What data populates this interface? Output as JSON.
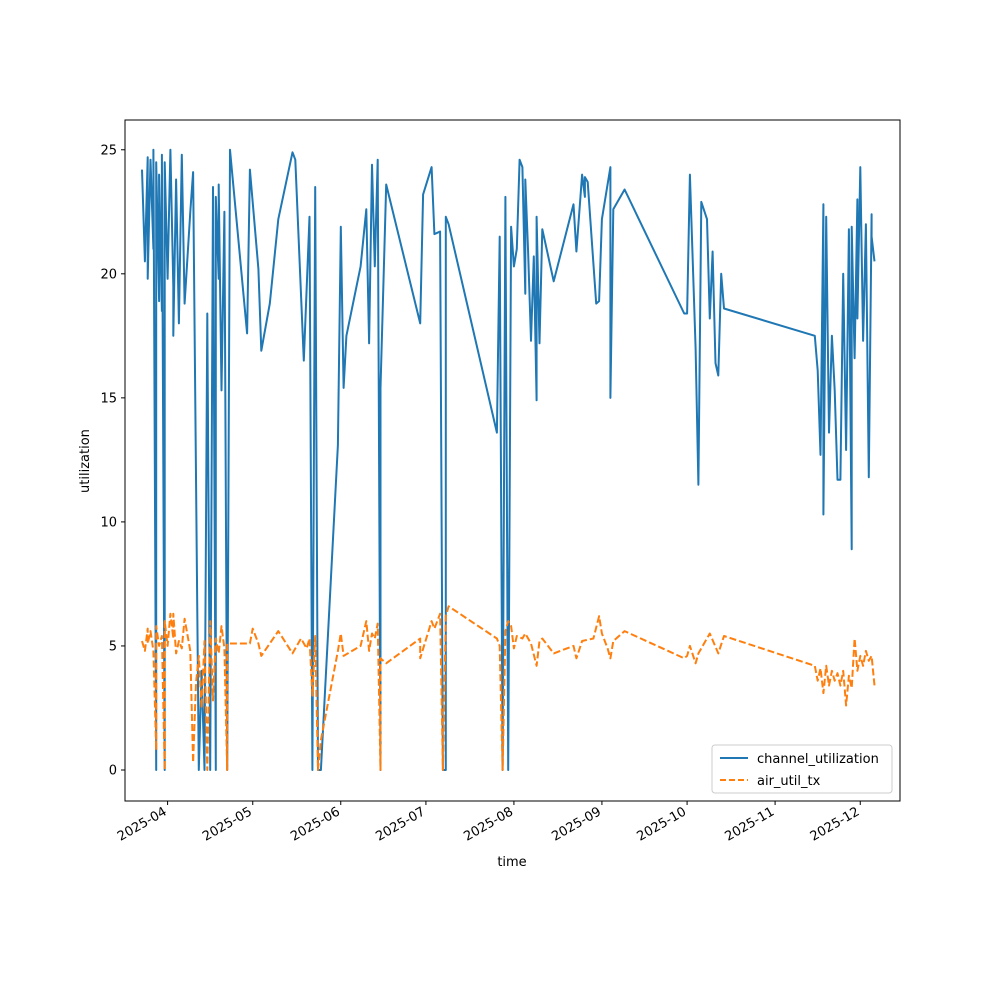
{
  "chart_data": {
    "type": "line",
    "title": "",
    "xlabel": "time",
    "ylabel": "utilization",
    "x_type": "date",
    "xlim": [
      "2025-03-17",
      "2025-12-15"
    ],
    "ylim": [
      -1.25,
      26.2
    ],
    "yticks": [
      0,
      5,
      10,
      15,
      20,
      25
    ],
    "xticks": [
      "2025-04-01",
      "2025-05-01",
      "2025-06-01",
      "2025-07-01",
      "2025-08-01",
      "2025-09-01",
      "2025-10-01",
      "2025-11-01",
      "2025-12-01"
    ],
    "xtick_labels": [
      "2025-04",
      "2025-05",
      "2025-06",
      "2025-07",
      "2025-08",
      "2025-09",
      "2025-10",
      "2025-11",
      "2025-12"
    ],
    "grid": false,
    "legend_position": "lower-right",
    "series": [
      {
        "name": "channel_utilization",
        "color": "#1f77b4",
        "style": "solid",
        "points": [
          [
            "2025-03-23",
            24.2
          ],
          [
            "2025-03-24",
            20.5
          ],
          [
            "2025-03-25",
            24.7
          ],
          [
            "2025-03-25",
            19.8
          ],
          [
            "2025-03-26",
            24.6
          ],
          [
            "2025-03-27",
            21.0
          ],
          [
            "2025-03-27",
            25.0
          ],
          [
            "2025-03-28",
            0.0
          ],
          [
            "2025-03-28",
            24.5
          ],
          [
            "2025-03-29",
            18.9
          ],
          [
            "2025-03-29",
            24.0
          ],
          [
            "2025-03-30",
            18.5
          ],
          [
            "2025-03-30",
            24.8
          ],
          [
            "2025-03-31",
            0.0
          ],
          [
            "2025-03-31",
            24.5
          ],
          [
            "2025-04-01",
            19.8
          ],
          [
            "2025-04-02",
            25.0
          ],
          [
            "2025-04-03",
            19.5
          ],
          [
            "2025-04-03",
            17.5
          ],
          [
            "2025-04-04",
            23.8
          ],
          [
            "2025-04-05",
            18.0
          ],
          [
            "2025-04-06",
            24.8
          ],
          [
            "2025-04-07",
            18.8
          ],
          [
            "2025-04-09",
            22.5
          ],
          [
            "2025-04-10",
            24.1
          ],
          [
            "2025-04-12",
            0.0
          ],
          [
            "2025-04-13",
            4.0
          ],
          [
            "2025-04-14",
            0.0
          ],
          [
            "2025-04-15",
            18.4
          ],
          [
            "2025-04-16",
            0.0
          ],
          [
            "2025-04-17",
            23.5
          ],
          [
            "2025-04-18",
            0.0
          ],
          [
            "2025-04-18",
            23.1
          ],
          [
            "2025-04-19",
            19.8
          ],
          [
            "2025-04-19",
            23.6
          ],
          [
            "2025-04-20",
            15.3
          ],
          [
            "2025-04-21",
            22.5
          ],
          [
            "2025-04-22",
            0.0
          ],
          [
            "2025-04-23",
            25.0
          ],
          [
            "2025-04-29",
            17.6
          ],
          [
            "2025-04-30",
            24.2
          ],
          [
            "2025-05-03",
            20.2
          ],
          [
            "2025-05-04",
            16.9
          ],
          [
            "2025-05-07",
            18.8
          ],
          [
            "2025-05-10",
            22.2
          ],
          [
            "2025-05-15",
            24.9
          ],
          [
            "2025-05-16",
            24.6
          ],
          [
            "2025-05-19",
            16.5
          ],
          [
            "2025-05-21",
            22.3
          ],
          [
            "2025-05-22",
            0.0
          ],
          [
            "2025-05-23",
            23.5
          ],
          [
            "2025-05-24",
            0.0
          ],
          [
            "2025-05-25",
            0.0
          ],
          [
            "2025-05-31",
            13.1
          ],
          [
            "2025-06-01",
            21.8
          ],
          [
            "2025-06-01",
            21.9
          ],
          [
            "2025-06-02",
            15.4
          ],
          [
            "2025-06-03",
            17.5
          ],
          [
            "2025-06-08",
            20.3
          ],
          [
            "2025-06-10",
            22.6
          ],
          [
            "2025-06-11",
            17.2
          ],
          [
            "2025-06-12",
            24.4
          ],
          [
            "2025-06-13",
            20.3
          ],
          [
            "2025-06-14",
            24.6
          ],
          [
            "2025-06-15",
            0.0
          ],
          [
            "2025-06-15",
            15.4
          ],
          [
            "2025-06-17",
            23.6
          ],
          [
            "2025-06-29",
            18.0
          ],
          [
            "2025-06-30",
            23.2
          ],
          [
            "2025-07-03",
            24.3
          ],
          [
            "2025-07-04",
            21.6
          ],
          [
            "2025-07-06",
            21.7
          ],
          [
            "2025-07-07",
            0.0
          ],
          [
            "2025-07-08",
            0.0
          ],
          [
            "2025-07-08",
            22.3
          ],
          [
            "2025-07-09",
            22.0
          ],
          [
            "2025-07-26",
            13.6
          ],
          [
            "2025-07-27",
            21.5
          ],
          [
            "2025-07-28",
            0.0
          ],
          [
            "2025-07-29",
            23.1
          ],
          [
            "2025-07-30",
            0.0
          ],
          [
            "2025-07-31",
            21.9
          ],
          [
            "2025-08-01",
            20.3
          ],
          [
            "2025-08-02",
            21.0
          ],
          [
            "2025-08-03",
            24.6
          ],
          [
            "2025-08-04",
            24.3
          ],
          [
            "2025-08-05",
            19.2
          ],
          [
            "2025-08-05",
            23.8
          ],
          [
            "2025-08-06",
            20.9
          ],
          [
            "2025-08-07",
            17.3
          ],
          [
            "2025-08-08",
            20.7
          ],
          [
            "2025-08-09",
            14.9
          ],
          [
            "2025-08-09",
            22.3
          ],
          [
            "2025-08-10",
            17.2
          ],
          [
            "2025-08-11",
            21.8
          ],
          [
            "2025-08-15",
            19.7
          ],
          [
            "2025-08-22",
            22.8
          ],
          [
            "2025-08-23",
            20.9
          ],
          [
            "2025-08-25",
            24.0
          ],
          [
            "2025-08-26",
            23.1
          ],
          [
            "2025-08-26",
            23.9
          ],
          [
            "2025-08-27",
            23.7
          ],
          [
            "2025-08-30",
            18.8
          ],
          [
            "2025-08-31",
            18.9
          ],
          [
            "2025-09-01",
            22.2
          ],
          [
            "2025-09-04",
            24.3
          ],
          [
            "2025-09-04",
            15.0
          ],
          [
            "2025-09-05",
            22.6
          ],
          [
            "2025-09-09",
            23.4
          ],
          [
            "2025-09-30",
            18.4
          ],
          [
            "2025-10-01",
            18.4
          ],
          [
            "2025-10-02",
            24.0
          ],
          [
            "2025-10-04",
            17.0
          ],
          [
            "2025-10-05",
            11.5
          ],
          [
            "2025-10-06",
            22.9
          ],
          [
            "2025-10-08",
            22.2
          ],
          [
            "2025-10-09",
            18.2
          ],
          [
            "2025-10-10",
            20.9
          ],
          [
            "2025-10-11",
            16.4
          ],
          [
            "2025-10-12",
            15.9
          ],
          [
            "2025-10-13",
            20.0
          ],
          [
            "2025-10-14",
            18.6
          ],
          [
            "2025-11-15",
            17.5
          ],
          [
            "2025-11-16",
            16.1
          ],
          [
            "2025-11-17",
            12.7
          ],
          [
            "2025-11-18",
            22.8
          ],
          [
            "2025-11-18",
            10.3
          ],
          [
            "2025-11-19",
            22.3
          ],
          [
            "2025-11-20",
            13.6
          ],
          [
            "2025-11-21",
            17.5
          ],
          [
            "2025-11-22",
            15.3
          ],
          [
            "2025-11-23",
            11.7
          ],
          [
            "2025-11-24",
            11.7
          ],
          [
            "2025-11-25",
            20.0
          ],
          [
            "2025-11-26",
            12.9
          ],
          [
            "2025-11-27",
            21.8
          ],
          [
            "2025-11-28",
            8.9
          ],
          [
            "2025-11-28",
            21.9
          ],
          [
            "2025-11-29",
            16.6
          ],
          [
            "2025-11-30",
            23.0
          ],
          [
            "2025-11-30",
            18.2
          ],
          [
            "2025-12-01",
            24.3
          ],
          [
            "2025-12-02",
            17.3
          ],
          [
            "2025-12-03",
            22.0
          ],
          [
            "2025-12-04",
            11.8
          ],
          [
            "2025-12-05",
            22.4
          ],
          [
            "2025-12-05",
            21.5
          ],
          [
            "2025-12-06",
            20.5
          ]
        ]
      },
      {
        "name": "air_util_tx",
        "color": "#ff7f0e",
        "style": "dashed",
        "points": [
          [
            "2025-03-23",
            5.2
          ],
          [
            "2025-03-24",
            4.8
          ],
          [
            "2025-03-25",
            5.7
          ],
          [
            "2025-03-25",
            5.1
          ],
          [
            "2025-03-26",
            5.6
          ],
          [
            "2025-03-27",
            4.8
          ],
          [
            "2025-03-28",
            0.8
          ],
          [
            "2025-03-28",
            5.8
          ],
          [
            "2025-03-29",
            5.0
          ],
          [
            "2025-03-30",
            5.4
          ],
          [
            "2025-03-31",
            0.0
          ],
          [
            "2025-03-31",
            6.0
          ],
          [
            "2025-04-01",
            5.0
          ],
          [
            "2025-04-02",
            6.3
          ],
          [
            "2025-04-03",
            5.3
          ],
          [
            "2025-04-03",
            6.3
          ],
          [
            "2025-04-04",
            4.7
          ],
          [
            "2025-04-05",
            5.2
          ],
          [
            "2025-04-06",
            4.9
          ],
          [
            "2025-04-07",
            6.1
          ],
          [
            "2025-04-09",
            4.8
          ],
          [
            "2025-04-10",
            0.3
          ],
          [
            "2025-04-11",
            3.5
          ],
          [
            "2025-04-12",
            4.6
          ],
          [
            "2025-04-13",
            2.5
          ],
          [
            "2025-04-14",
            5.2
          ],
          [
            "2025-04-15",
            0.0
          ],
          [
            "2025-04-16",
            6.0
          ],
          [
            "2025-04-17",
            2.8
          ],
          [
            "2025-04-18",
            5.3
          ],
          [
            "2025-04-19",
            4.7
          ],
          [
            "2025-04-20",
            5.8
          ],
          [
            "2025-04-21",
            4.9
          ],
          [
            "2025-04-22",
            0.0
          ],
          [
            "2025-04-22",
            5.1
          ],
          [
            "2025-04-30",
            5.1
          ],
          [
            "2025-05-01",
            5.7
          ],
          [
            "2025-05-03",
            5.1
          ],
          [
            "2025-05-04",
            4.6
          ],
          [
            "2025-05-07",
            5.1
          ],
          [
            "2025-05-10",
            5.6
          ],
          [
            "2025-05-15",
            4.7
          ],
          [
            "2025-05-18",
            5.3
          ],
          [
            "2025-05-20",
            4.9
          ],
          [
            "2025-05-21",
            5.3
          ],
          [
            "2025-05-22",
            3.0
          ],
          [
            "2025-05-23",
            5.4
          ],
          [
            "2025-05-24",
            0.0
          ],
          [
            "2025-05-25",
            1.2
          ],
          [
            "2025-05-31",
            4.8
          ],
          [
            "2025-06-01",
            5.5
          ],
          [
            "2025-06-02",
            4.6
          ],
          [
            "2025-06-05",
            4.8
          ],
          [
            "2025-06-08",
            5.0
          ],
          [
            "2025-06-10",
            6.0
          ],
          [
            "2025-06-11",
            4.8
          ],
          [
            "2025-06-12",
            5.5
          ],
          [
            "2025-06-13",
            5.3
          ],
          [
            "2025-06-14",
            5.9
          ],
          [
            "2025-06-15",
            0.0
          ],
          [
            "2025-06-15",
            4.5
          ],
          [
            "2025-06-17",
            4.3
          ],
          [
            "2025-06-29",
            5.3
          ],
          [
            "2025-06-29",
            4.5
          ],
          [
            "2025-07-03",
            6.0
          ],
          [
            "2025-07-04",
            5.7
          ],
          [
            "2025-07-06",
            6.3
          ],
          [
            "2025-07-07",
            0.0
          ],
          [
            "2025-07-08",
            6.2
          ],
          [
            "2025-07-09",
            6.6
          ],
          [
            "2025-07-26",
            5.3
          ],
          [
            "2025-07-27",
            5.0
          ],
          [
            "2025-07-28",
            0.0
          ],
          [
            "2025-07-29",
            5.6
          ],
          [
            "2025-07-30",
            6.0
          ],
          [
            "2025-07-31",
            5.8
          ],
          [
            "2025-08-01",
            4.9
          ],
          [
            "2025-08-02",
            5.4
          ],
          [
            "2025-08-04",
            5.3
          ],
          [
            "2025-08-05",
            5.5
          ],
          [
            "2025-08-07",
            5.1
          ],
          [
            "2025-08-09",
            4.2
          ],
          [
            "2025-08-10",
            5.2
          ],
          [
            "2025-08-11",
            5.3
          ],
          [
            "2025-08-15",
            4.7
          ],
          [
            "2025-08-22",
            5.0
          ],
          [
            "2025-08-23",
            4.5
          ],
          [
            "2025-08-25",
            5.2
          ],
          [
            "2025-08-29",
            5.3
          ],
          [
            "2025-08-31",
            6.2
          ],
          [
            "2025-09-01",
            5.5
          ],
          [
            "2025-09-03",
            4.9
          ],
          [
            "2025-09-04",
            4.5
          ],
          [
            "2025-09-05",
            5.2
          ],
          [
            "2025-09-09",
            5.6
          ],
          [
            "2025-09-30",
            4.5
          ],
          [
            "2025-10-01",
            4.6
          ],
          [
            "2025-10-02",
            5.0
          ],
          [
            "2025-10-04",
            4.3
          ],
          [
            "2025-10-05",
            4.7
          ],
          [
            "2025-10-09",
            5.5
          ],
          [
            "2025-10-12",
            4.7
          ],
          [
            "2025-10-14",
            5.4
          ],
          [
            "2025-11-15",
            4.2
          ],
          [
            "2025-11-16",
            3.6
          ],
          [
            "2025-11-17",
            4.1
          ],
          [
            "2025-11-18",
            3.1
          ],
          [
            "2025-11-19",
            4.2
          ],
          [
            "2025-11-20",
            3.4
          ],
          [
            "2025-11-21",
            4.0
          ],
          [
            "2025-11-22",
            3.6
          ],
          [
            "2025-11-23",
            3.9
          ],
          [
            "2025-11-24",
            3.4
          ],
          [
            "2025-11-25",
            4.0
          ],
          [
            "2025-11-26",
            2.6
          ],
          [
            "2025-11-27",
            3.8
          ],
          [
            "2025-11-28",
            3.3
          ],
          [
            "2025-11-29",
            5.3
          ],
          [
            "2025-11-30",
            4.0
          ],
          [
            "2025-12-01",
            4.6
          ],
          [
            "2025-12-02",
            4.2
          ],
          [
            "2025-12-03",
            4.8
          ],
          [
            "2025-12-04",
            4.4
          ],
          [
            "2025-12-05",
            4.6
          ],
          [
            "2025-12-06",
            3.4
          ]
        ]
      }
    ]
  }
}
